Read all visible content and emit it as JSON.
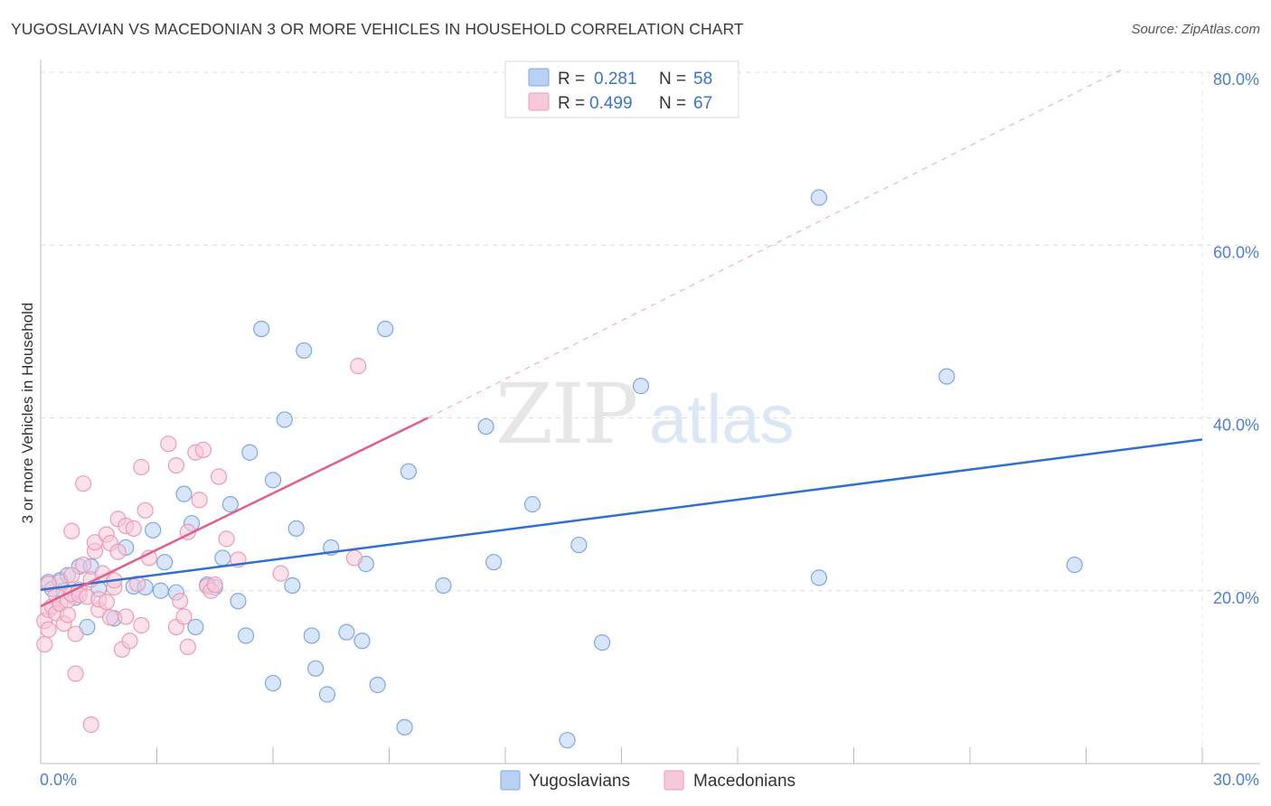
{
  "header": {
    "title": "YUGOSLAVIAN VS MACEDONIAN 3 OR MORE VEHICLES IN HOUSEHOLD CORRELATION CHART",
    "source": "Source: ZipAtlas.com"
  },
  "watermark": "ZIPatlas",
  "chart_data": {
    "type": "scatter",
    "title": "YUGOSLAVIAN VS MACEDONIAN 3 OR MORE VEHICLES IN HOUSEHOLD CORRELATION CHART",
    "xlabel": "",
    "ylabel": "3 or more Vehicles in Household",
    "xlim": [
      0,
      30
    ],
    "ylim": [
      0,
      80
    ],
    "x_ticks": [
      {
        "value": 0,
        "label": "0.0%"
      },
      {
        "value": 30,
        "label": "30.0%"
      }
    ],
    "y_ticks": [
      {
        "value": 20,
        "label": "20.0%"
      },
      {
        "value": 40,
        "label": "40.0%"
      },
      {
        "value": 60,
        "label": "60.0%"
      },
      {
        "value": 80,
        "label": "80.0%"
      }
    ],
    "grid": true,
    "legend_position": "top-center",
    "series": [
      {
        "name": "Yugoslavians",
        "color": "#7aa8e6",
        "fill": "#b9d0f2",
        "line_color": "#2f6fce",
        "R": "0.281",
        "N": "58",
        "trend": {
          "x0": 0,
          "y0": 20.1,
          "x1": 30,
          "y1": 37.5
        },
        "points": [
          [
            0.2,
            21
          ],
          [
            0.3,
            20.2
          ],
          [
            0.5,
            21.2
          ],
          [
            0.6,
            20
          ],
          [
            0.7,
            21.8
          ],
          [
            0.9,
            19.2
          ],
          [
            1.0,
            22.8
          ],
          [
            1.2,
            15.8
          ],
          [
            1.3,
            22.8
          ],
          [
            1.5,
            20.2
          ],
          [
            1.9,
            16.8
          ],
          [
            2.2,
            25
          ],
          [
            2.4,
            20.5
          ],
          [
            2.7,
            20.4
          ],
          [
            2.9,
            27
          ],
          [
            3.1,
            20
          ],
          [
            3.2,
            23.3
          ],
          [
            3.5,
            19.8
          ],
          [
            3.7,
            31.2
          ],
          [
            3.9,
            27.8
          ],
          [
            4.0,
            15.8
          ],
          [
            4.3,
            20.7
          ],
          [
            4.5,
            20.4
          ],
          [
            4.7,
            23.8
          ],
          [
            4.9,
            30
          ],
          [
            5.1,
            18.8
          ],
          [
            5.3,
            14.8
          ],
          [
            5.4,
            36
          ],
          [
            5.7,
            50.3
          ],
          [
            6.0,
            9.3
          ],
          [
            6.0,
            32.8
          ],
          [
            6.3,
            39.8
          ],
          [
            6.5,
            20.6
          ],
          [
            6.6,
            27.2
          ],
          [
            6.8,
            47.8
          ],
          [
            7.0,
            14.8
          ],
          [
            7.1,
            11
          ],
          [
            7.4,
            8
          ],
          [
            7.5,
            25
          ],
          [
            7.9,
            15.2
          ],
          [
            8.3,
            14.2
          ],
          [
            8.4,
            23.1
          ],
          [
            8.7,
            9.1
          ],
          [
            8.9,
            50.3
          ],
          [
            9.4,
            4.2
          ],
          [
            9.5,
            33.8
          ],
          [
            10.4,
            20.6
          ],
          [
            11.5,
            39
          ],
          [
            11.7,
            23.3
          ],
          [
            12.7,
            30
          ],
          [
            13.6,
            2.7
          ],
          [
            13.9,
            25.3
          ],
          [
            14.5,
            14
          ],
          [
            15.5,
            43.7
          ],
          [
            20.1,
            21.5
          ],
          [
            20.1,
            65.5
          ],
          [
            23.4,
            44.8
          ],
          [
            26.7,
            23
          ]
        ]
      },
      {
        "name": "Macedonians",
        "color": "#ee9ab5",
        "fill": "#f7c9d8",
        "line_color": "#e0608a",
        "R": "0.499",
        "N": "67",
        "trend": {
          "x0": 0,
          "y0": 18.2,
          "x1": 10.0,
          "y1": 40.0
        },
        "trend_ext": {
          "x0": 10.0,
          "y0": 40.0,
          "x1": 28.0,
          "y1": 80.5
        },
        "points": [
          [
            0.1,
            16.5
          ],
          [
            0.1,
            13.8
          ],
          [
            0.2,
            17.8
          ],
          [
            0.2,
            15.5
          ],
          [
            0.3,
            18.2
          ],
          [
            0.4,
            17.4
          ],
          [
            0.4,
            19.5
          ],
          [
            0.5,
            21
          ],
          [
            0.5,
            18.5
          ],
          [
            0.6,
            16.2
          ],
          [
            0.7,
            18.9
          ],
          [
            0.7,
            17.2
          ],
          [
            0.8,
            19.6
          ],
          [
            0.8,
            26.9
          ],
          [
            0.8,
            21.8
          ],
          [
            0.9,
            15
          ],
          [
            0.9,
            10.4
          ],
          [
            1.0,
            20.1
          ],
          [
            1.0,
            19.5
          ],
          [
            1.1,
            23
          ],
          [
            1.1,
            32.4
          ],
          [
            1.2,
            19.3
          ],
          [
            1.3,
            21.3
          ],
          [
            1.3,
            4.5
          ],
          [
            1.4,
            24.6
          ],
          [
            1.4,
            25.6
          ],
          [
            1.5,
            17.8
          ],
          [
            1.5,
            19
          ],
          [
            1.6,
            22
          ],
          [
            1.7,
            26.5
          ],
          [
            1.7,
            18.7
          ],
          [
            1.8,
            25.5
          ],
          [
            1.8,
            16.9
          ],
          [
            1.9,
            20.4
          ],
          [
            1.9,
            21.2
          ],
          [
            2.0,
            28.3
          ],
          [
            2.0,
            24.5
          ],
          [
            2.1,
            13.2
          ],
          [
            2.2,
            27.5
          ],
          [
            2.2,
            17
          ],
          [
            2.3,
            14.2
          ],
          [
            2.4,
            27.2
          ],
          [
            2.5,
            20.8
          ],
          [
            2.6,
            34.3
          ],
          [
            2.6,
            16
          ],
          [
            2.7,
            29.3
          ],
          [
            2.8,
            23.8
          ],
          [
            3.3,
            37
          ],
          [
            3.5,
            15.8
          ],
          [
            3.5,
            34.5
          ],
          [
            3.6,
            18.8
          ],
          [
            3.7,
            17
          ],
          [
            3.8,
            26.8
          ],
          [
            3.8,
            13.5
          ],
          [
            4.0,
            36
          ],
          [
            4.1,
            30.5
          ],
          [
            4.2,
            36.3
          ],
          [
            4.3,
            20.5
          ],
          [
            4.4,
            20
          ],
          [
            4.5,
            20.7
          ],
          [
            4.6,
            33.2
          ],
          [
            4.8,
            26
          ],
          [
            5.1,
            23.6
          ],
          [
            6.2,
            22
          ],
          [
            8.1,
            23.8
          ],
          [
            8.2,
            46
          ],
          [
            0.2,
            20.8
          ]
        ]
      }
    ]
  },
  "legend": {
    "r_label": "R =",
    "n_label": "N =",
    "items": [
      {
        "name": "Yugoslavians",
        "r": "0.281",
        "n": "58"
      },
      {
        "name": "Macedonians",
        "r": "0.499",
        "n": "67"
      }
    ]
  }
}
